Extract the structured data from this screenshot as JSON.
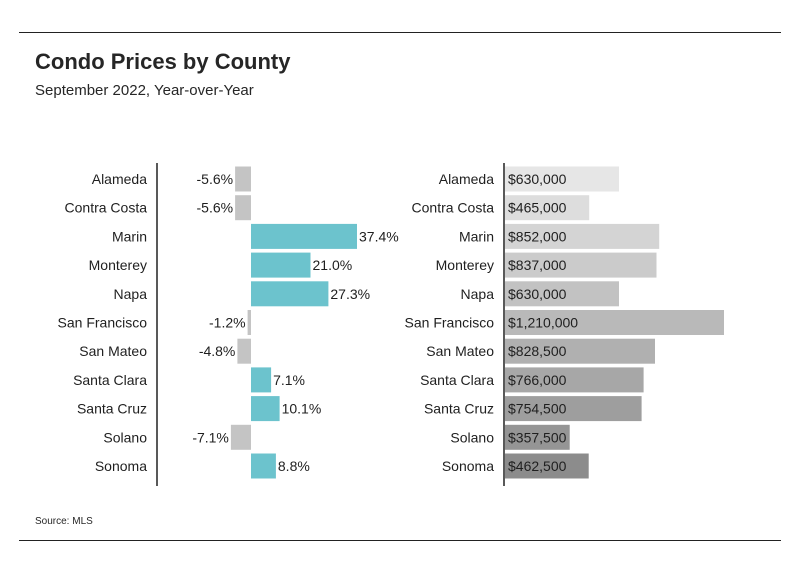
{
  "header": {
    "title": "Condo Prices by County",
    "subtitle": "September 2022, Year-over-Year"
  },
  "footer": {
    "source": "Source:  MLS"
  },
  "colors": {
    "positive_bar": "#6cc3cd",
    "negative_bar": "#c4c4c4",
    "price_bar_light": "#e6e6e6",
    "price_bar_dark": "#8c8c8c",
    "axis": "#222222"
  },
  "chart_data": [
    {
      "type": "bar",
      "orientation": "horizontal",
      "categories": [
        "Alameda",
        "Contra Costa",
        "Marin",
        "Monterey",
        "Napa",
        "San Francisco",
        "San Mateo",
        "Santa Clara",
        "Santa Cruz",
        "Solano",
        "Sonoma"
      ],
      "values": [
        -5.6,
        -5.6,
        37.4,
        21.0,
        27.3,
        -1.2,
        -4.8,
        7.1,
        10.1,
        -7.1,
        8.8
      ],
      "value_labels": [
        "-5.6%",
        "-5.6%",
        "37.4%",
        "21.0%",
        "27.3%",
        "-1.2%",
        "-4.8%",
        "7.1%",
        "10.1%",
        "-7.1%",
        "8.8%"
      ],
      "unit": "%"
    },
    {
      "type": "bar",
      "orientation": "horizontal",
      "categories": [
        "Alameda",
        "Contra Costa",
        "Marin",
        "Monterey",
        "Napa",
        "San Francisco",
        "San Mateo",
        "Santa Clara",
        "Santa Cruz",
        "Solano",
        "Sonoma"
      ],
      "values": [
        630000,
        465000,
        852000,
        837000,
        630000,
        1210000,
        828500,
        766000,
        754500,
        357500,
        462500
      ],
      "value_labels": [
        "$630,000",
        "$465,000",
        "$852,000",
        "$837,000",
        "$630,000",
        "$1,210,000",
        "$828,500",
        "$766,000",
        "$754,500",
        "$357,500",
        "$462,500"
      ],
      "unit": "$"
    }
  ]
}
